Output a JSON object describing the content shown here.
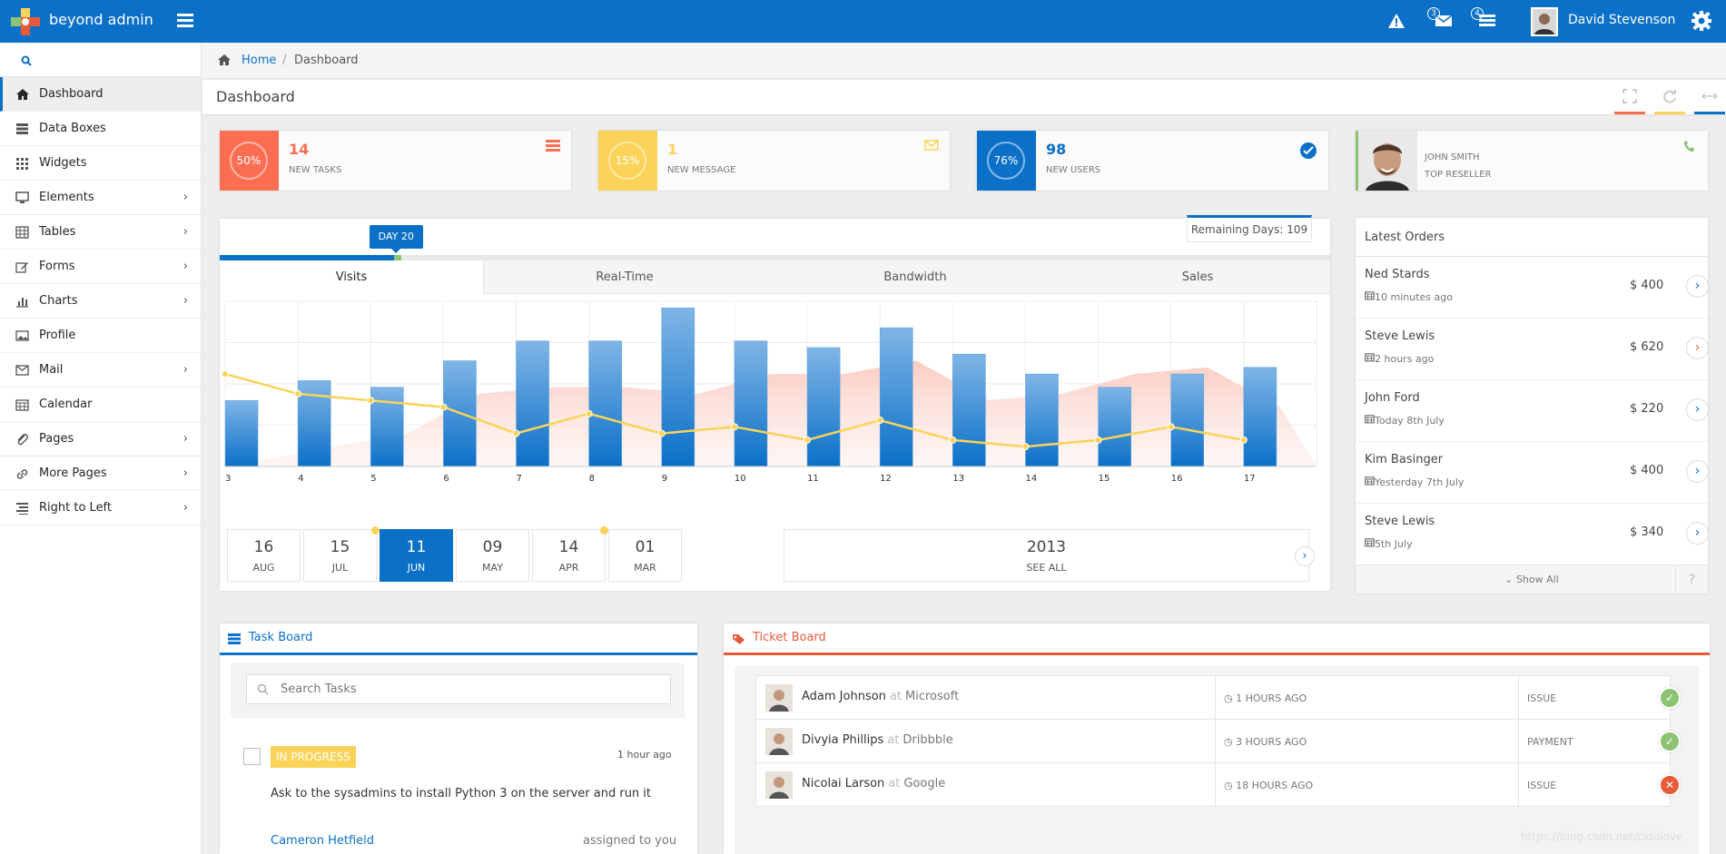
{
  "navbar": {
    "brand": "beyond admin",
    "alerts_badge": "",
    "messages_badge": "3",
    "tasks_badge": "4",
    "user_name": "David Stevenson",
    "accent": "#0b70c8"
  },
  "sidebar": {
    "items": [
      {
        "label": "Dashboard",
        "icon": "home-icon",
        "active": true,
        "chevron": false
      },
      {
        "label": "Data Boxes",
        "icon": "data-boxes-icon",
        "chevron": false
      },
      {
        "label": "Widgets",
        "icon": "widgets-icon",
        "chevron": false
      },
      {
        "label": "Elements",
        "icon": "desktop-icon",
        "chevron": true
      },
      {
        "label": "Tables",
        "icon": "table-icon",
        "chevron": true
      },
      {
        "label": "Forms",
        "icon": "pencil-icon",
        "chevron": true
      },
      {
        "label": "Charts",
        "icon": "chart-icon",
        "chevron": true
      },
      {
        "label": "Profile",
        "icon": "picture-icon",
        "chevron": false
      },
      {
        "label": "Mail",
        "icon": "envelope-icon",
        "chevron": true
      },
      {
        "label": "Calendar",
        "icon": "calendar-icon",
        "chevron": false
      },
      {
        "label": "Pages",
        "icon": "paperclip-icon",
        "chevron": true
      },
      {
        "label": "More Pages",
        "icon": "link-icon",
        "chevron": true
      },
      {
        "label": "Right to Left",
        "icon": "align-right-icon",
        "chevron": true
      }
    ]
  },
  "breadcrumb": {
    "home": "Home",
    "separator": "/",
    "current": "Dashboard"
  },
  "page": {
    "title": "Dashboard"
  },
  "stats": [
    {
      "ring": "50%",
      "value": "14",
      "label": "NEW TASKS",
      "color": "#fb6e52",
      "icon": "tasks-icon"
    },
    {
      "ring": "15%",
      "value": "1",
      "label": "NEW MESSAGE",
      "color": "#fbd358",
      "icon": "envelope-icon"
    },
    {
      "ring": "76%",
      "value": "98",
      "label": "NEW USERS",
      "color": "#0b70c8",
      "icon": "check-circle-icon"
    },
    {
      "name": "JOHN SMITH",
      "role": "TOP RESELLER",
      "color": "#8cc474",
      "icon": "phone-icon"
    }
  ],
  "progress": {
    "day_label": "DAY 20",
    "remaining": "Remaining Days: 109",
    "fraction": 0.2
  },
  "chart_tabs": [
    "Visits",
    "Real-Time",
    "Bandwidth",
    "Sales"
  ],
  "chart_data": {
    "type": "bar",
    "x": [
      "3",
      "4",
      "5",
      "6",
      "7",
      "8",
      "9",
      "10",
      "11",
      "12",
      "13",
      "14",
      "15",
      "16",
      "17"
    ],
    "series": [
      {
        "type": "bar",
        "values": [
          40,
          52,
          48,
          64,
          76,
          76,
          96,
          76,
          72,
          84,
          68,
          56,
          48,
          56,
          60
        ]
      },
      {
        "type": "line",
        "values": [
          56,
          44,
          40,
          36,
          20,
          32,
          20,
          24,
          16,
          28,
          16,
          12,
          16,
          24,
          16
        ]
      },
      {
        "type": "area",
        "values": [
          4,
          12,
          20,
          44,
          48,
          48,
          44,
          56,
          56,
          64,
          40,
          44,
          56,
          60,
          36
        ]
      }
    ],
    "ylim": [
      0,
      100
    ],
    "grid": true
  },
  "dates": [
    {
      "day": "16",
      "month": "AUG",
      "dot": false,
      "selected": false
    },
    {
      "day": "15",
      "month": "JUL",
      "dot": true,
      "selected": false
    },
    {
      "day": "11",
      "month": "JUN",
      "dot": false,
      "selected": true
    },
    {
      "day": "09",
      "month": "MAY",
      "dot": false,
      "selected": false
    },
    {
      "day": "14",
      "month": "APR",
      "dot": true,
      "selected": false
    },
    {
      "day": "01",
      "month": "MAR",
      "dot": false,
      "selected": false
    }
  ],
  "year_box": {
    "year": "2013",
    "label": "SEE ALL"
  },
  "orders": {
    "title": "Latest Orders",
    "items": [
      {
        "name": "Ned Stards",
        "time": "10 minutes ago",
        "amount": "$ 400",
        "color": "#0b70c8"
      },
      {
        "name": "Steve Lewis",
        "time": "2 hours ago",
        "amount": "$ 620",
        "color": "#e75b3a"
      },
      {
        "name": "John Ford",
        "time": "Today 8th July",
        "amount": "$ 220",
        "color": "#0b70c8"
      },
      {
        "name": "Kim Basinger",
        "time": "Yesterday 7th July",
        "amount": "$ 400",
        "color": "#0b70c8"
      },
      {
        "name": "Steve Lewis",
        "time": "5th July",
        "amount": "$ 340",
        "color": "#0b70c8"
      }
    ],
    "show_all": "Show All",
    "help": "?"
  },
  "task_board": {
    "title": "Task Board",
    "search_placeholder": "Search Tasks",
    "task": {
      "status": "IN PROGRESS",
      "time": "1 hour ago",
      "text": "Ask to the sysadmins to install Python 3 on the server and run it",
      "user": "Cameron Hetfield",
      "assigned": "assigned to you"
    }
  },
  "ticket_board": {
    "title": "Ticket Board",
    "at": "at",
    "tickets": [
      {
        "name": "Adam Johnson",
        "company": "Microsoft",
        "time": "1 HOURS AGO",
        "type": "ISSUE",
        "state": "ok"
      },
      {
        "name": "Divyia Phillips",
        "company": "Dribbble",
        "time": "3 HOURS AGO",
        "type": "PAYMENT",
        "state": "ok"
      },
      {
        "name": "Nicolai Larson",
        "company": "Google",
        "time": "18 HOURS AGO",
        "type": "ISSUE",
        "state": "error"
      }
    ]
  },
  "watermark": "https://blog.csdn.net/cidolove"
}
